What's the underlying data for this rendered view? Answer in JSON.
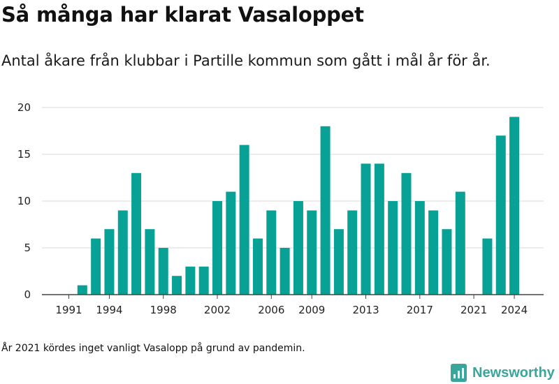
{
  "title": "Så många har klarat Vasaloppet",
  "subtitle": "Antal åkare från klubbar i Partille kommun som gått i mål år för år.",
  "footnote": "År 2021 kördes inget vanligt Vasalopp på grund av pandemin.",
  "brand": {
    "name": "Newsworthy",
    "icon": "newsworthy-logo-icon",
    "color": "#3aa59a"
  },
  "chart_data": {
    "type": "bar",
    "title": "",
    "xlabel": "",
    "ylabel": "",
    "bar_color": "#08a195",
    "grid": true,
    "ylim": [
      0,
      20
    ],
    "yticks": [
      0,
      5,
      10,
      15,
      20
    ],
    "xtick_labels": [
      "1991",
      "1994",
      "1998",
      "2002",
      "2006",
      "2009",
      "2013",
      "2017",
      "2021",
      "2024"
    ],
    "categories": [
      1991,
      1992,
      1993,
      1994,
      1995,
      1996,
      1997,
      1998,
      1999,
      2000,
      2001,
      2002,
      2003,
      2004,
      2005,
      2006,
      2007,
      2008,
      2009,
      2010,
      2011,
      2012,
      2013,
      2014,
      2015,
      2016,
      2017,
      2018,
      2019,
      2020,
      2021,
      2022,
      2023,
      2024
    ],
    "values": [
      0,
      1,
      6,
      7,
      9,
      13,
      7,
      5,
      2,
      3,
      3,
      10,
      11,
      16,
      6,
      9,
      5,
      10,
      9,
      18,
      7,
      9,
      14,
      14,
      10,
      13,
      10,
      9,
      7,
      11,
      0,
      6,
      17,
      19
    ]
  }
}
